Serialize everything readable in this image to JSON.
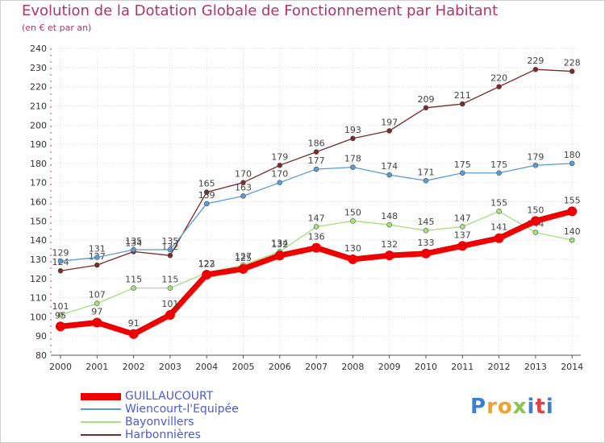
{
  "title": "Evolution de la Dotation Globale de Fonctionnement par Habitant",
  "subtitle": "(en € et par an)",
  "logo": {
    "text": "Proxiti",
    "colors": [
      "#3b7fd0",
      "#f0a030",
      "#f0a030",
      "#8bc34a",
      "#3b7fd0",
      "#e04040",
      "#3b7fd0"
    ]
  },
  "chart_data": {
    "type": "line",
    "x": [
      "2000",
      "2001",
      "2002",
      "2003",
      "2004",
      "2005",
      "2006",
      "2007",
      "2008",
      "2009",
      "2010",
      "2011",
      "2012",
      "2013",
      "2014"
    ],
    "ylim": [
      80,
      240
    ],
    "yticks": [
      80,
      90,
      100,
      110,
      120,
      130,
      140,
      150,
      160,
      170,
      180,
      190,
      200,
      210,
      220,
      230,
      240
    ],
    "grid": true,
    "legend_position": "bottom-left",
    "series": [
      {
        "name": "GUILLAUCOURT",
        "color": "#ee0000",
        "values": [
          95,
          97,
          91,
          101,
          122,
          125,
          132,
          136,
          130,
          132,
          133,
          137,
          141,
          150,
          155
        ]
      },
      {
        "name": "Wiencourt-l'Equipée",
        "color": "#5b9bd5",
        "values": [
          129,
          131,
          135,
          135,
          159,
          163,
          170,
          177,
          178,
          174,
          171,
          175,
          175,
          179,
          180
        ]
      },
      {
        "name": "Bayonvillers",
        "color": "#a6e07a",
        "values": [
          101,
          107,
          115,
          115,
          123,
          127,
          134,
          147,
          150,
          148,
          145,
          147,
          155,
          144,
          140
        ]
      },
      {
        "name": "Harbonnières",
        "color": "#7a2a2a",
        "values": [
          124,
          127,
          134,
          132,
          165,
          170,
          179,
          186,
          193,
          197,
          209,
          211,
          220,
          229,
          228
        ]
      }
    ]
  }
}
